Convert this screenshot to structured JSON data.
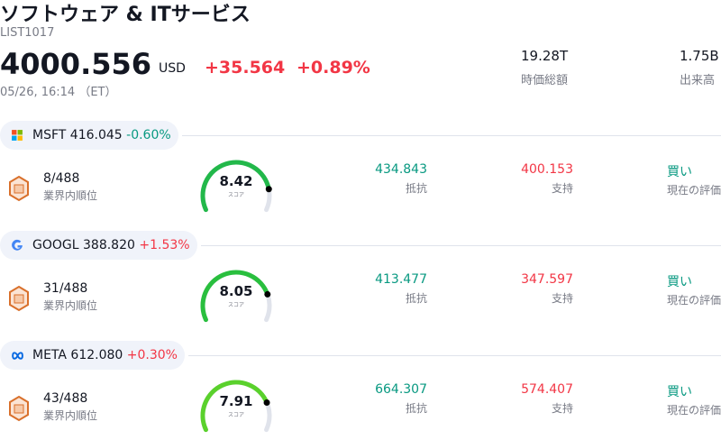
{
  "header": {
    "title": "ソフトウェア & ITサービス",
    "code": "LIST1017",
    "price": "4000.556",
    "currency": "USD",
    "change": "+35.564",
    "change_pct": "+0.89%",
    "change_color": "#f23645",
    "datetime": "05/26, 16:14 （ET）",
    "stats": [
      {
        "value": "19.28T",
        "label": "時価総額"
      },
      {
        "value": "1.75B",
        "label": "出来高"
      }
    ]
  },
  "stocks": [
    {
      "ticker": "MSFT",
      "price": "416.045",
      "change": "-0.60%",
      "change_color": "#089981",
      "rank": "8/488",
      "rank_label": "業界内順位",
      "score": 8.42,
      "score_label": "スコア",
      "gauge_color": "#22b84a",
      "resistance": "434.843",
      "resistance_label": "抵抗",
      "support": "400.153",
      "support_label": "支持",
      "rating": "買い",
      "rating_label": "現在の評価"
    },
    {
      "ticker": "GOOGL",
      "price": "388.820",
      "change": "+1.53%",
      "change_color": "#f23645",
      "rank": "31/488",
      "rank_label": "業界内順位",
      "score": 8.05,
      "score_label": "スコア",
      "gauge_color": "#29bf3e",
      "resistance": "413.477",
      "resistance_label": "抵抗",
      "support": "347.597",
      "support_label": "支持",
      "rating": "買い",
      "rating_label": "現在の評価"
    },
    {
      "ticker": "META",
      "price": "612.080",
      "change": "+0.30%",
      "change_color": "#f23645",
      "rank": "43/488",
      "rank_label": "業界内順位",
      "score": 7.91,
      "score_label": "スコア",
      "gauge_color": "#5ad12c",
      "resistance": "664.307",
      "resistance_label": "抵抗",
      "support": "574.407",
      "support_label": "支持",
      "rating": "買い",
      "rating_label": "現在の評価"
    }
  ]
}
